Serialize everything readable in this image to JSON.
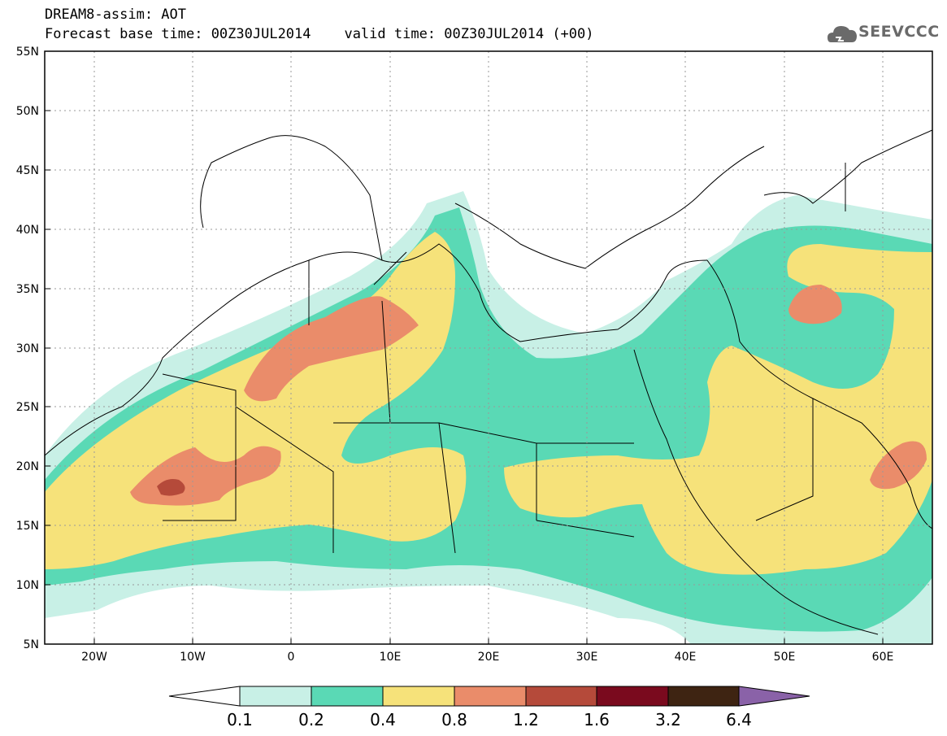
{
  "header": {
    "title_line1": "DREAM8-assim: AOT",
    "title_line2": "Forecast base time: 00Z30JUL2014    valid time: 00Z30JUL2014 (+00)"
  },
  "logo": {
    "text": "SEEVCCC",
    "icon": "cloud-icon"
  },
  "axes": {
    "lat_labels": [
      "55N",
      "50N",
      "45N",
      "40N",
      "35N",
      "30N",
      "25N",
      "20N",
      "15N",
      "10N",
      "5N"
    ],
    "lon_labels": [
      "20W",
      "10W",
      "0",
      "10E",
      "20E",
      "30E",
      "40E",
      "50E",
      "60E"
    ]
  },
  "colorbar": {
    "labels": [
      "0.1",
      "0.2",
      "0.4",
      "0.8",
      "1.2",
      "1.6",
      "3.2",
      "6.4"
    ],
    "colors": [
      "#ffffff",
      "#c8f0e6",
      "#5ad9b5",
      "#f6e27a",
      "#ea8c6a",
      "#b54a3a",
      "#7a0a1e",
      "#3e2412",
      "#8a62a8"
    ]
  }
}
